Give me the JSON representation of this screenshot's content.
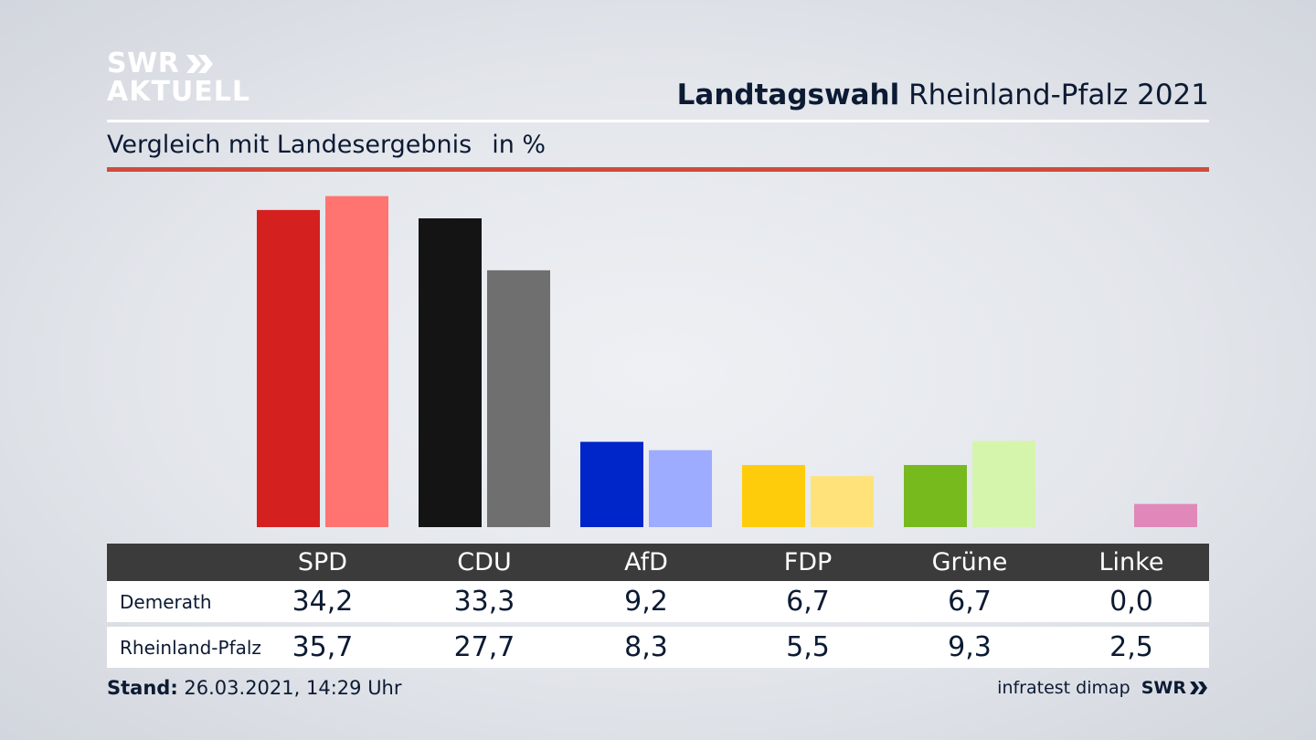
{
  "logo": {
    "line1": "SWR",
    "line2": "AKTUELL"
  },
  "header": {
    "title_bold": "Landtagswahl",
    "title_rest": "Rheinland-Pfalz 2021"
  },
  "subtitle": {
    "text": "Vergleich mit Landesergebnis",
    "unit": "in %"
  },
  "chart_data": {
    "type": "bar",
    "categories": [
      "SPD",
      "CDU",
      "AfD",
      "FDP",
      "Grüne",
      "Linke"
    ],
    "series": [
      {
        "name": "Demerath",
        "values": [
          34.2,
          33.3,
          9.2,
          6.7,
          6.7,
          0.0
        ],
        "colors": [
          "#d52020",
          "#141414",
          "#0025c8",
          "#ffcc0c",
          "#76ba1e",
          "#cf4d8c"
        ]
      },
      {
        "name": "Rheinland-Pfalz",
        "values": [
          35.7,
          27.7,
          8.3,
          5.5,
          9.3,
          2.5
        ],
        "colors": [
          "#ff7470",
          "#706f6f",
          "#9dacff",
          "#ffe37a",
          "#d5f5ac",
          "#e088ba"
        ]
      }
    ],
    "ylim": [
      0,
      36
    ],
    "value_labels": {
      "Demerath": [
        "34,2",
        "33,3",
        "9,2",
        "6,7",
        "6,7",
        "0,0"
      ],
      "Rheinland-Pfalz": [
        "35,7",
        "27,7",
        "8,3",
        "5,5",
        "9,3",
        "2,5"
      ]
    }
  },
  "footer": {
    "stand_label": "Stand:",
    "stand_value": "26.03.2021, 14:29 Uhr",
    "source": "infratest dimap",
    "brand": "SWR"
  }
}
